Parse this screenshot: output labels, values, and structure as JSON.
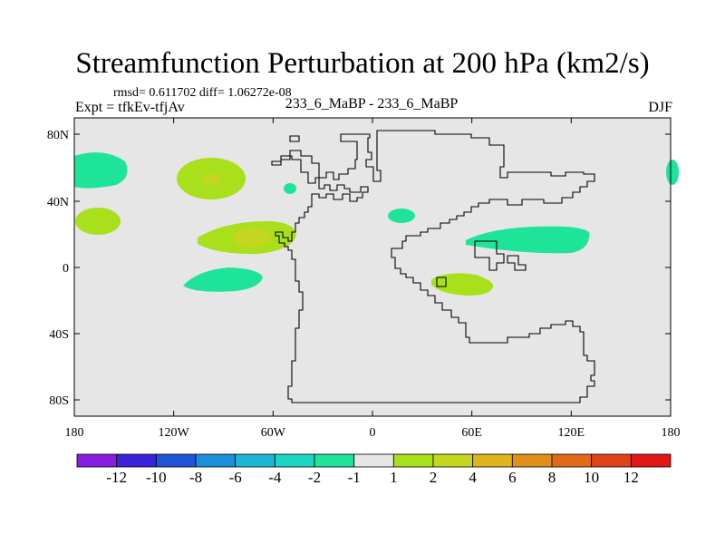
{
  "header": {
    "title": "Streamfunction Perturbation at 200 hPa (km2/s)",
    "stats": "rmsd= 0.611702 diff= 1.06272e-08",
    "experiment": "Expt = tfkEv-tfjAv",
    "comparison": "233_6_MaBP - 233_6_MaBP",
    "season": "DJF"
  },
  "map": {
    "background": "#e6e6e6",
    "lat_ticks": [
      "80N",
      "40N",
      "0",
      "40S",
      "80S"
    ],
    "lon_ticks": [
      "180",
      "120W",
      "60W",
      "0",
      "60E",
      "120E",
      "180"
    ]
  },
  "colorbar": {
    "colors": [
      "#8a1be0",
      "#3a22d8",
      "#1f55d6",
      "#1b8fdb",
      "#1bb6d4",
      "#1cd6c4",
      "#1ee49a",
      "#e6e6e6",
      "#a8e01c",
      "#c4d61e",
      "#e0b41c",
      "#e0901a",
      "#e06a18",
      "#e0421a",
      "#e01818"
    ],
    "labels": [
      "-12",
      "-10",
      "-8",
      "-6",
      "-4",
      "-2",
      "-1",
      "1",
      "2",
      "4",
      "6",
      "8",
      "10",
      "12"
    ]
  },
  "anomalies": [
    {
      "name": "anomaly-north-pacific-west",
      "level": "-2",
      "color": "#1ee49a"
    },
    {
      "name": "anomaly-north-pacific-east",
      "level": "2",
      "color": "#a8e01c"
    },
    {
      "name": "anomaly-north-pacific-core",
      "level": "4",
      "color": "#c4d61e"
    },
    {
      "name": "anomaly-subtropical-pacific-west",
      "level": "2",
      "color": "#a8e01c"
    },
    {
      "name": "anomaly-subtropical-pacific-east",
      "level": "2",
      "color": "#a8e01c"
    },
    {
      "name": "anomaly-subtropical-pacific-core",
      "level": "4",
      "color": "#c4d61e"
    },
    {
      "name": "anomaly-south-pacific",
      "level": "-2",
      "color": "#1ee49a"
    },
    {
      "name": "anomaly-atlantic-small",
      "level": "-2",
      "color": "#1ee49a"
    },
    {
      "name": "anomaly-mediterranean",
      "level": "-2",
      "color": "#1ee49a"
    },
    {
      "name": "anomaly-asia",
      "level": "-2",
      "color": "#1ee49a"
    },
    {
      "name": "anomaly-indian-ocean",
      "level": "2",
      "color": "#a8e01c"
    },
    {
      "name": "anomaly-far-east",
      "level": "-2",
      "color": "#1ee49a"
    }
  ]
}
